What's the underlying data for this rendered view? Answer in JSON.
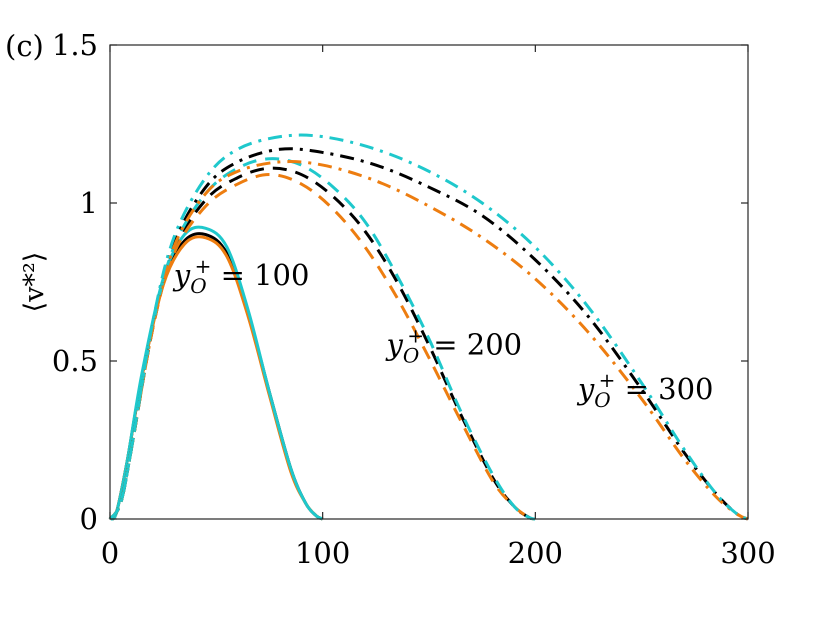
{
  "panel_label": "(c)",
  "chart_data": {
    "type": "line",
    "title": "",
    "xlabel": "",
    "ylabel": "⟨v*²⟩",
    "xlim": [
      0,
      300
    ],
    "ylim": [
      0,
      1.5
    ],
    "xticks": [
      0,
      100,
      200,
      300
    ],
    "xtick_labels": [
      "0",
      "100",
      "200",
      "300"
    ],
    "yticks": [
      0,
      0.5,
      1,
      1.5
    ],
    "ytick_labels": [
      "0",
      "0.5",
      "1",
      "1.5"
    ],
    "grid": false,
    "legend": "none",
    "annotations": [
      {
        "text": "y_O^+ = 100",
        "base": "y",
        "sub": "O",
        "sup": "+",
        "rest": " = 100",
        "x": 30,
        "y": 0.74
      },
      {
        "text": "y_O^+ = 200",
        "base": "y",
        "sub": "O",
        "sup": "+",
        "rest": " = 200",
        "x": 130,
        "y": 0.52
      },
      {
        "text": "y_O^+ = 300",
        "base": "y",
        "sub": "O",
        "sup": "+",
        "rest": " = 300",
        "x": 220,
        "y": 0.38
      }
    ],
    "series": [
      {
        "group": "100",
        "color": "#000000",
        "dash": "solid",
        "width": 3,
        "x": [
          0,
          3,
          8,
          15,
          25,
          35,
          45,
          55,
          65,
          75,
          85,
          92,
          97,
          100
        ],
        "y": [
          0,
          0.02,
          0.18,
          0.45,
          0.75,
          0.88,
          0.9,
          0.84,
          0.65,
          0.4,
          0.16,
          0.05,
          0.01,
          0
        ]
      },
      {
        "group": "100",
        "color": "#ED7D10",
        "dash": "solid",
        "width": 3,
        "x": [
          0,
          3,
          8,
          15,
          25,
          35,
          45,
          55,
          65,
          75,
          85,
          92,
          97,
          100
        ],
        "y": [
          0,
          0.02,
          0.18,
          0.45,
          0.74,
          0.87,
          0.89,
          0.83,
          0.64,
          0.39,
          0.15,
          0.05,
          0.01,
          0
        ]
      },
      {
        "group": "100",
        "color": "#1FC8CC",
        "dash": "solid",
        "width": 3,
        "x": [
          0,
          3,
          8,
          15,
          25,
          35,
          45,
          55,
          65,
          75,
          85,
          92,
          97,
          100
        ],
        "y": [
          0,
          0.02,
          0.18,
          0.46,
          0.76,
          0.9,
          0.92,
          0.86,
          0.66,
          0.4,
          0.16,
          0.05,
          0.01,
          0
        ]
      },
      {
        "group": "200",
        "color": "#000000",
        "dash": "dashed",
        "width": 3,
        "x": [
          0,
          5,
          10,
          20,
          30,
          45,
          60,
          75,
          90,
          105,
          120,
          135,
          150,
          165,
          180,
          190,
          197,
          200
        ],
        "y": [
          0,
          0.05,
          0.22,
          0.6,
          0.85,
          1.01,
          1.08,
          1.11,
          1.09,
          1.02,
          0.91,
          0.75,
          0.55,
          0.33,
          0.13,
          0.04,
          0.005,
          0
        ]
      },
      {
        "group": "200",
        "color": "#ED7D10",
        "dash": "dashed",
        "width": 3,
        "x": [
          0,
          5,
          10,
          20,
          30,
          45,
          60,
          75,
          90,
          105,
          120,
          135,
          150,
          165,
          180,
          190,
          197,
          200
        ],
        "y": [
          0,
          0.05,
          0.22,
          0.6,
          0.84,
          0.99,
          1.06,
          1.09,
          1.06,
          0.98,
          0.86,
          0.7,
          0.51,
          0.31,
          0.12,
          0.04,
          0.005,
          0
        ]
      },
      {
        "group": "200",
        "color": "#1FC8CC",
        "dash": "dashed",
        "width": 3,
        "x": [
          0,
          5,
          10,
          20,
          30,
          45,
          60,
          75,
          90,
          105,
          120,
          135,
          150,
          165,
          180,
          190,
          197,
          200
        ],
        "y": [
          0,
          0.05,
          0.22,
          0.61,
          0.86,
          1.03,
          1.11,
          1.14,
          1.12,
          1.05,
          0.94,
          0.77,
          0.57,
          0.34,
          0.14,
          0.04,
          0.005,
          0
        ]
      },
      {
        "group": "300",
        "color": "#000000",
        "dash": "dashdot",
        "width": 3,
        "x": [
          0,
          5,
          10,
          20,
          30,
          45,
          60,
          80,
          100,
          125,
          150,
          175,
          200,
          225,
          250,
          270,
          285,
          295,
          300
        ],
        "y": [
          0,
          0.05,
          0.22,
          0.61,
          0.87,
          1.05,
          1.13,
          1.17,
          1.16,
          1.12,
          1.05,
          0.96,
          0.82,
          0.64,
          0.41,
          0.21,
          0.08,
          0.015,
          0
        ]
      },
      {
        "group": "300",
        "color": "#ED7D10",
        "dash": "dashdot",
        "width": 3,
        "x": [
          0,
          5,
          10,
          20,
          30,
          45,
          60,
          80,
          100,
          125,
          150,
          175,
          200,
          225,
          250,
          270,
          285,
          295,
          300
        ],
        "y": [
          0,
          0.05,
          0.22,
          0.6,
          0.86,
          1.03,
          1.1,
          1.13,
          1.12,
          1.07,
          0.99,
          0.89,
          0.76,
          0.59,
          0.38,
          0.19,
          0.07,
          0.015,
          0
        ]
      },
      {
        "group": "300",
        "color": "#1FC8CC",
        "dash": "dashdot",
        "width": 3,
        "x": [
          0,
          5,
          10,
          20,
          30,
          45,
          60,
          80,
          100,
          125,
          150,
          175,
          200,
          225,
          250,
          270,
          285,
          295,
          300
        ],
        "y": [
          0,
          0.05,
          0.22,
          0.62,
          0.89,
          1.08,
          1.17,
          1.21,
          1.21,
          1.17,
          1.1,
          1.0,
          0.86,
          0.67,
          0.43,
          0.22,
          0.08,
          0.015,
          0
        ]
      }
    ]
  }
}
